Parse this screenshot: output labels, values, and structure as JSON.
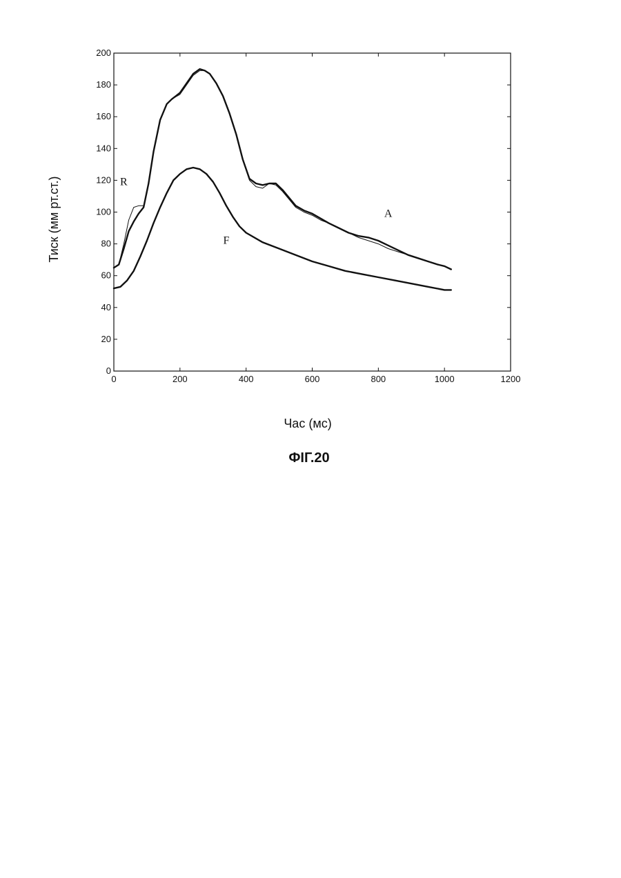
{
  "chart_data": {
    "type": "line",
    "xlabel": "Час (мс)",
    "ylabel": "Тиск (мм рт.ст.)",
    "xlim": [
      0,
      1200
    ],
    "ylim": [
      0,
      200
    ],
    "xticks": [
      0,
      200,
      400,
      600,
      800,
      1000,
      1200
    ],
    "yticks": [
      0,
      20,
      40,
      60,
      80,
      100,
      120,
      140,
      160,
      180,
      200
    ],
    "grid": false,
    "series": [
      {
        "name": "R",
        "style": "thin",
        "x": [
          0,
          15,
          30,
          45,
          60,
          75,
          90,
          105,
          120,
          140,
          160,
          175,
          200,
          220,
          240,
          260,
          275,
          290,
          310,
          330,
          350,
          370,
          390,
          410,
          430,
          450,
          470,
          490,
          510,
          530,
          550,
          575,
          600,
          625,
          650,
          680,
          710,
          740,
          770,
          800,
          830,
          860,
          890,
          920,
          950,
          980,
          1000,
          1020
        ],
        "y": [
          65,
          67,
          80,
          95,
          103,
          104,
          104,
          118,
          138,
          158,
          168,
          171,
          174,
          180,
          186,
          189,
          189,
          187,
          181,
          173,
          162,
          149,
          133,
          120,
          116,
          115,
          118,
          117,
          113,
          108,
          103,
          100,
          98,
          95,
          93,
          90,
          87,
          84,
          82,
          80,
          77,
          75,
          73,
          71,
          69,
          67,
          66,
          64
        ]
      },
      {
        "name": "A",
        "style": "thick",
        "x": [
          0,
          15,
          30,
          45,
          60,
          75,
          90,
          105,
          120,
          140,
          160,
          175,
          200,
          220,
          240,
          260,
          275,
          290,
          310,
          330,
          350,
          370,
          390,
          410,
          430,
          450,
          470,
          490,
          510,
          530,
          550,
          575,
          600,
          625,
          650,
          680,
          710,
          740,
          770,
          800,
          830,
          860,
          890,
          920,
          950,
          980,
          1000,
          1020
        ],
        "y": [
          65,
          67,
          77,
          88,
          94,
          99,
          103,
          118,
          138,
          158,
          168,
          171,
          175,
          181,
          187,
          190,
          189,
          187,
          181,
          173,
          162,
          149,
          133,
          121,
          118,
          117,
          118,
          118,
          114,
          109,
          104,
          101,
          99,
          96,
          93,
          90,
          87,
          85,
          84,
          82,
          79,
          76,
          73,
          71,
          69,
          67,
          66,
          64
        ]
      },
      {
        "name": "F",
        "style": "thick",
        "x": [
          0,
          20,
          40,
          60,
          80,
          100,
          120,
          140,
          160,
          180,
          200,
          220,
          240,
          260,
          280,
          300,
          320,
          340,
          360,
          380,
          400,
          450,
          500,
          550,
          600,
          650,
          700,
          750,
          800,
          850,
          900,
          950,
          1000,
          1010,
          1020
        ],
        "y": [
          52,
          53,
          57,
          63,
          72,
          82,
          93,
          103,
          112,
          120,
          124,
          127,
          128,
          127,
          124,
          119,
          112,
          104,
          97,
          91,
          87,
          81,
          77,
          73,
          69,
          66,
          63,
          61,
          59,
          57,
          55,
          53,
          51,
          51,
          51
        ]
      }
    ],
    "annotations": [
      {
        "text": "R",
        "x": 30,
        "y": 117
      },
      {
        "text": "A",
        "x": 830,
        "y": 97
      },
      {
        "text": "F",
        "x": 340,
        "y": 80
      }
    ]
  },
  "figure_caption": "ФІГ.20"
}
